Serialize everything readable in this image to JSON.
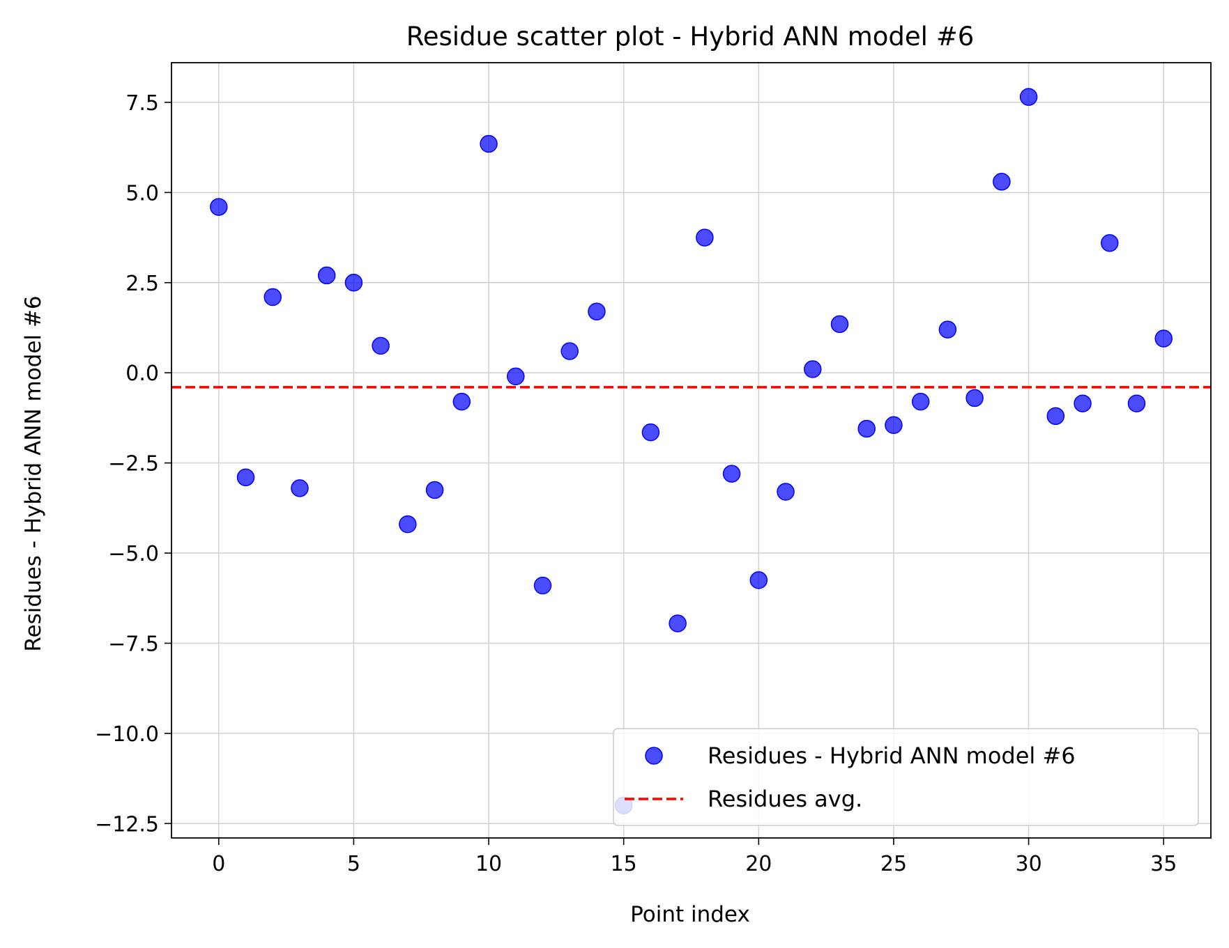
{
  "chart_data": {
    "type": "scatter",
    "title": "Residue scatter plot - Hybrid ANN model #6",
    "xlabel": "Point index",
    "ylabel": "Residues - Hybrid ANN model #6",
    "xlim": [
      -1.75,
      36.75
    ],
    "ylim": [
      -12.9,
      8.6
    ],
    "xticks": [
      0,
      5,
      10,
      15,
      20,
      25,
      30,
      35
    ],
    "xtick_labels": [
      "0",
      "5",
      "10",
      "15",
      "20",
      "25",
      "30",
      "35"
    ],
    "yticks": [
      7.5,
      5.0,
      2.5,
      0.0,
      -2.5,
      -5.0,
      -7.5,
      -10.0,
      -12.5
    ],
    "ytick_labels": [
      "7.5",
      "5.0",
      "2.5",
      "0.0",
      "−2.5",
      "−5.0",
      "−7.5",
      "−10.0",
      "−12.5"
    ],
    "grid": true,
    "legend_position": "lower-right",
    "series": [
      {
        "name": "Residues - Hybrid ANN model #6",
        "kind": "scatter",
        "color": "#0000ff",
        "x": [
          0,
          1,
          2,
          3,
          4,
          5,
          6,
          7,
          8,
          9,
          10,
          11,
          12,
          13,
          14,
          15,
          16,
          17,
          18,
          19,
          20,
          21,
          22,
          23,
          24,
          25,
          26,
          27,
          28,
          29,
          30,
          31,
          32,
          33,
          34,
          35
        ],
        "y": [
          4.6,
          -2.9,
          2.1,
          -3.2,
          2.7,
          2.5,
          0.75,
          -4.2,
          -3.25,
          -0.8,
          6.35,
          -0.1,
          -5.9,
          0.6,
          1.7,
          -12.0,
          -1.65,
          -6.95,
          3.75,
          -2.8,
          -5.75,
          -3.3,
          0.1,
          1.35,
          -1.55,
          -1.45,
          -0.8,
          1.2,
          -0.7,
          5.3,
          7.65,
          -1.2,
          -0.85,
          3.6,
          -0.85,
          0.95
        ]
      },
      {
        "name": "Residues avg.",
        "kind": "hline",
        "color": "#ff0000",
        "y": -0.4
      }
    ]
  }
}
